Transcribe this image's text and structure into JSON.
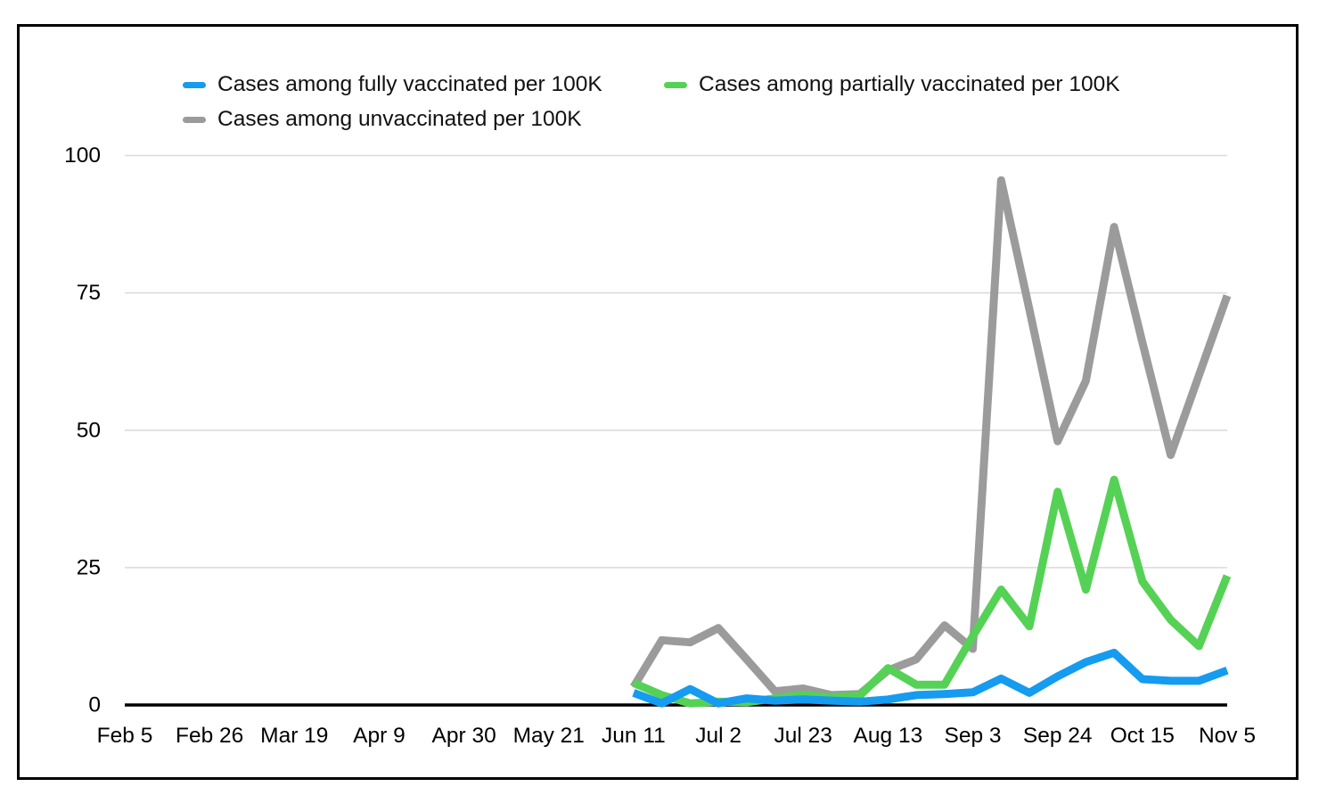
{
  "legend": {
    "position": "top",
    "items": [
      {
        "id": "fully-vaccinated",
        "label": "Cases among fully vaccinated per 100K",
        "color": "#159bf0"
      },
      {
        "id": "partially-vaccinated",
        "label": "Cases among partially vaccinated per 100K",
        "color": "#55d255"
      },
      {
        "id": "unvaccinated",
        "label": "Cases among unvaccinated per 100K",
        "color": "#9b9b9b"
      }
    ]
  },
  "chart_data": {
    "type": "line",
    "title": "",
    "xlabel": "",
    "ylabel": "",
    "ylim": [
      0,
      100
    ],
    "y_ticks": [
      0,
      25,
      50,
      75,
      100
    ],
    "grid": "horizontal",
    "x_tick_labels": [
      "Feb 5",
      "Feb 26",
      "Mar 19",
      "Apr 9",
      "Apr 30",
      "May 21",
      "Jun 11",
      "Jul 2",
      "Jul 23",
      "Aug 13",
      "Sep 3",
      "Sep 24",
      "Oct 15",
      "Nov 5"
    ],
    "x_tick_interval_weeks": 3,
    "weeks_total": 39,
    "start_week": 18,
    "data_dates": [
      "Jun 11",
      "Jun 18",
      "Jun 25",
      "Jul 2",
      "Jul 9",
      "Jul 16",
      "Jul 23",
      "Jul 30",
      "Aug 6",
      "Aug 13",
      "Aug 20",
      "Aug 27",
      "Sep 3",
      "Sep 10",
      "Sep 17",
      "Sep 24",
      "Oct 1",
      "Oct 8",
      "Oct 15",
      "Oct 22",
      "Oct 29",
      "Nov 5"
    ],
    "series": [
      {
        "id": "fully-vaccinated",
        "name": "Cases among fully vaccinated per 100K",
        "color": "#159bf0",
        "values": [
          2.2,
          0.3,
          2.9,
          0.3,
          1.2,
          0.8,
          1.0,
          0.8,
          0.6,
          1.0,
          1.8,
          2.0,
          2.3,
          4.8,
          2.2,
          5.2,
          7.8,
          9.5,
          4.7,
          4.4,
          4.4,
          6.3
        ]
      },
      {
        "id": "partially-vaccinated",
        "name": "Cases among partially vaccinated per 100K",
        "color": "#55d255",
        "values": [
          4.0,
          1.8,
          0.3,
          0.6,
          0.5,
          1.2,
          1.8,
          1.4,
          1.7,
          6.7,
          3.7,
          3.7,
          12.5,
          21.0,
          14.3,
          38.8,
          21.0,
          41.0,
          22.5,
          15.5,
          10.7,
          23.5
        ]
      },
      {
        "id": "unvaccinated",
        "name": "Cases among unvaccinated per 100K",
        "color": "#9b9b9b",
        "values": [
          3.3,
          11.8,
          11.4,
          14.0,
          8.3,
          2.5,
          3.0,
          1.8,
          2.0,
          6.3,
          8.3,
          14.5,
          10.2,
          95.5,
          72.0,
          48.0,
          59.0,
          87.0,
          66.0,
          45.5,
          60.0,
          74.5
        ]
      }
    ],
    "colors": {
      "gridline": "#d9d9d9",
      "axis": "#000000",
      "tick_text": "#000000"
    }
  }
}
